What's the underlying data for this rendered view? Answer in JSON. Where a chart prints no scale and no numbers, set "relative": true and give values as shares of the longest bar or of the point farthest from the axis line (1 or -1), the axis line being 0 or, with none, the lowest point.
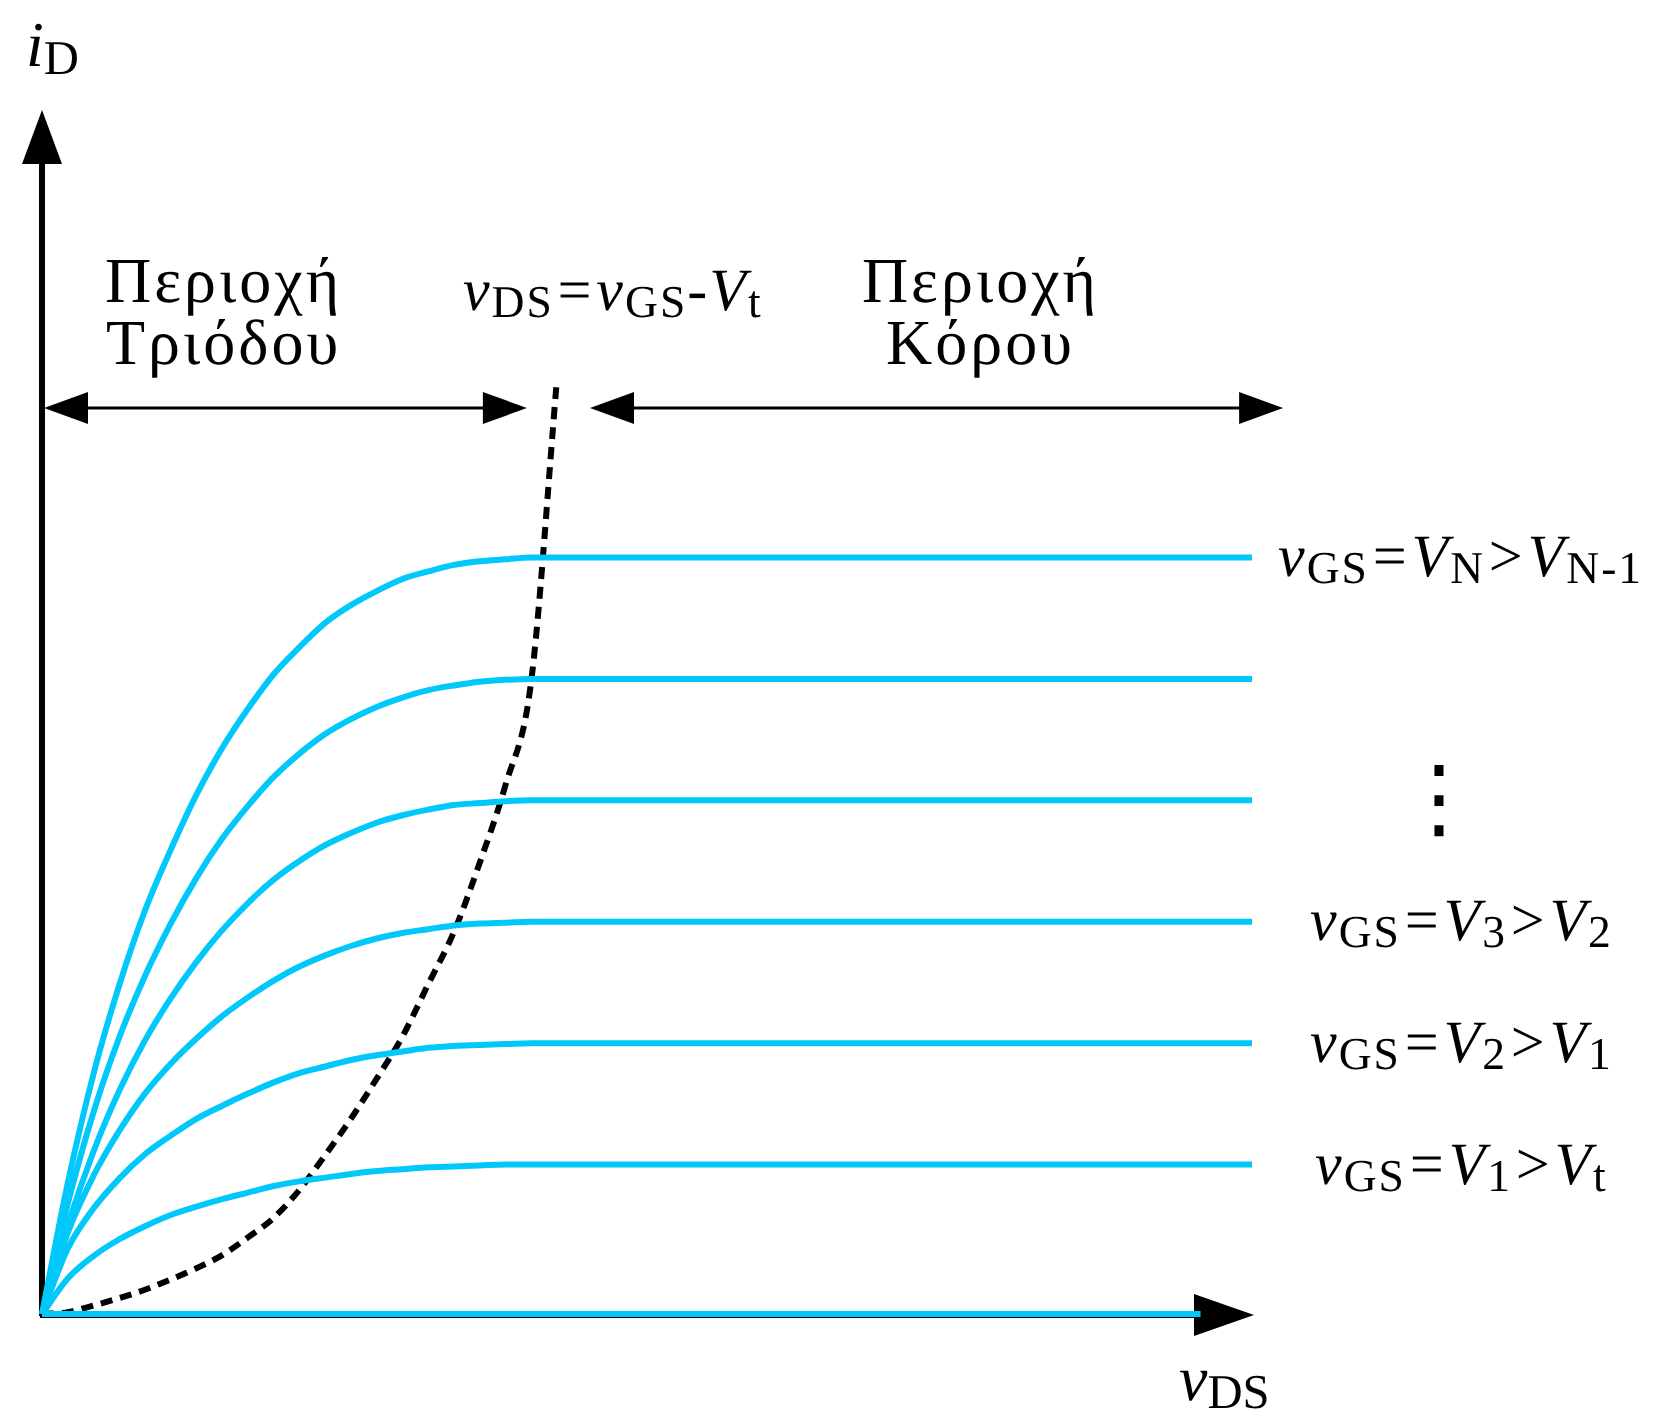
{
  "chart_data": {
    "type": "line",
    "relative": true,
    "marker": "none",
    "legend": false,
    "xlabel": "v$_{DS}$",
    "ylabel": "i$_{D}$",
    "annotations": [
      "Περιοχή Τριόδου",
      "Περιοχή Κόρου",
      "⋮"
    ],
    "categories": [
      null,
      null,
      null,
      null,
      null,
      null,
      null,
      null,
      null,
      null,
      null,
      null,
      null,
      null,
      null,
      null,
      null,
      null,
      null,
      null,
      null,
      null,
      null,
      null,
      null,
      null,
      null,
      null,
      null,
      null,
      null,
      null,
      null,
      null,
      null,
      null,
      null,
      null,
      null,
      null,
      null,
      null,
      null,
      null,
      null,
      null,
      null,
      null
    ],
    "series": [
      {
        "name": "v$_{GS}$=V$_{N}$>V$_{N-1}$",
        "color": "#00c8fa",
        "values": [
          0,
          0.14,
          0.257,
          0.352,
          0.432,
          0.497,
          0.556,
          0.606,
          0.648,
          0.685,
          0.714,
          0.74,
          0.759,
          0.774,
          0.787,
          0.795,
          0.802,
          0.806,
          0.808,
          0.81,
          0.81,
          0.81,
          0.81,
          0.81,
          0.81,
          0.81,
          0.81,
          0.81,
          0.81,
          0.81,
          0.81,
          0.81,
          0.81,
          0.81,
          0.81,
          0.81,
          0.81,
          0.81,
          0.81,
          0.81,
          0.81,
          0.81,
          0.81,
          0.81,
          0.81,
          0.81,
          0.81,
          0.81
        ]
      },
      {
        "color": "#00c8fa",
        "values": [
          0,
          0.118,
          0.216,
          0.296,
          0.362,
          0.418,
          0.467,
          0.509,
          0.544,
          0.575,
          0.6,
          0.621,
          0.637,
          0.65,
          0.66,
          0.668,
          0.673,
          0.677,
          0.679,
          0.68,
          0.68,
          0.68,
          0.68,
          0.68,
          0.68,
          0.68,
          0.68,
          0.68,
          0.68,
          0.68,
          0.68,
          0.68,
          0.68,
          0.68,
          0.68,
          0.68,
          0.68,
          0.68,
          0.68,
          0.68,
          0.68,
          0.68,
          0.68,
          0.68,
          0.68,
          0.68,
          0.68,
          0.68
        ]
      },
      {
        "color": "#00c8fa",
        "values": [
          0,
          0.095,
          0.174,
          0.239,
          0.293,
          0.338,
          0.377,
          0.411,
          0.44,
          0.465,
          0.485,
          0.502,
          0.515,
          0.526,
          0.534,
          0.54,
          0.545,
          0.547,
          0.549,
          0.55,
          0.55,
          0.55,
          0.55,
          0.55,
          0.55,
          0.55,
          0.55,
          0.55,
          0.55,
          0.55,
          0.55,
          0.55,
          0.55,
          0.55,
          0.55,
          0.55,
          0.55,
          0.55,
          0.55,
          0.55,
          0.55,
          0.55,
          0.55,
          0.55,
          0.55,
          0.55,
          0.55,
          0.55
        ]
      },
      {
        "name": "v$_{GS}$=V$_{3}$>V$_{2}$",
        "color": "#00c8fa",
        "values": [
          0,
          0.087,
          0.148,
          0.196,
          0.236,
          0.268,
          0.295,
          0.319,
          0.339,
          0.357,
          0.372,
          0.384,
          0.394,
          0.402,
          0.408,
          0.412,
          0.416,
          0.418,
          0.419,
          0.42,
          0.42,
          0.42,
          0.42,
          0.42,
          0.42,
          0.42,
          0.42,
          0.42,
          0.42,
          0.42,
          0.42,
          0.42,
          0.42,
          0.42,
          0.42,
          0.42,
          0.42,
          0.42,
          0.42,
          0.42,
          0.42,
          0.42,
          0.42,
          0.42,
          0.42,
          0.42,
          0.42,
          0.42
        ]
      },
      {
        "name": "v$_{GS}$=V$_{2}$>V$_{1}$",
        "color": "#00c8fa",
        "values": [
          0,
          0.07,
          0.113,
          0.145,
          0.171,
          0.191,
          0.209,
          0.223,
          0.236,
          0.248,
          0.258,
          0.265,
          0.272,
          0.277,
          0.281,
          0.285,
          0.287,
          0.288,
          0.289,
          0.29,
          0.29,
          0.29,
          0.29,
          0.29,
          0.29,
          0.29,
          0.29,
          0.29,
          0.29,
          0.29,
          0.29,
          0.29,
          0.29,
          0.29,
          0.29,
          0.29,
          0.29,
          0.29,
          0.29,
          0.29,
          0.29,
          0.29,
          0.29,
          0.29,
          0.29,
          0.29,
          0.29,
          0.29
        ]
      },
      {
        "name": "v$_{GS}$=V$_{1}$>V$_{t}$",
        "color": "#00c8fa",
        "values": [
          0,
          0.038,
          0.062,
          0.08,
          0.094,
          0.106,
          0.115,
          0.123,
          0.13,
          0.137,
          0.142,
          0.146,
          0.15,
          0.153,
          0.155,
          0.157,
          0.158,
          0.159,
          0.16,
          0.16,
          0.16,
          0.16,
          0.16,
          0.16,
          0.16,
          0.16,
          0.16,
          0.16,
          0.16,
          0.16,
          0.16,
          0.16,
          0.16,
          0.16,
          0.16,
          0.16,
          0.16,
          0.16,
          0.16,
          0.16,
          0.16,
          0.16,
          0.16,
          0.16,
          0.16,
          0.16,
          0.16,
          0.16
        ]
      },
      {
        "color": "#00c8fa",
        "values": [
          0,
          0,
          0,
          0,
          0,
          0,
          0,
          0,
          0,
          0,
          0,
          0,
          0,
          0,
          0,
          0,
          0,
          0,
          0,
          0,
          0,
          0,
          0,
          0,
          0,
          0,
          0,
          0,
          0,
          0,
          0,
          0,
          0,
          0,
          0,
          0,
          0,
          0,
          0,
          0,
          0,
          0,
          0,
          0,
          0,
          0,
          null,
          null
        ]
      },
      {
        "name": "v$_{DS}$=v$_{GS}$-V$_{t}$",
        "color": "#000000",
        "line_style": "dashed",
        "values": [
          0,
          0.002,
          0.009,
          0.017,
          0.026,
          0.037,
          0.049,
          0.063,
          0.082,
          0.103,
          0.133,
          0.17,
          0.209,
          0.252,
          0.297,
          0.353,
          0.409,
          0.483,
          0.566,
          0.677,
          1,
          null,
          null,
          null,
          null,
          null,
          null,
          null,
          null,
          null,
          null,
          null,
          null,
          null,
          null,
          null,
          null,
          null,
          null,
          null,
          null,
          null,
          null,
          null,
          null,
          null,
          null,
          null
        ]
      }
    ]
  }
}
